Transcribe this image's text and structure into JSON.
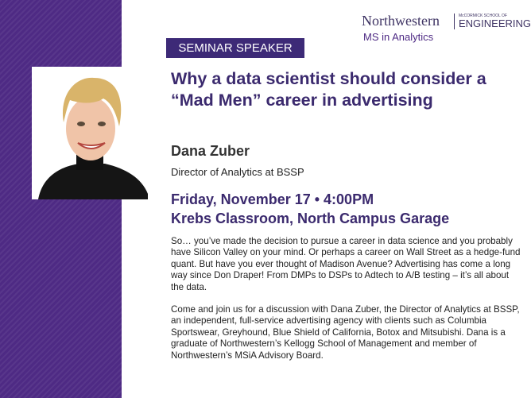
{
  "logo": {
    "university": "Northwestern",
    "school_small": "McCORMICK SCHOOL OF",
    "school": "ENGINEERING",
    "program": "MS in Analytics"
  },
  "badge": "SEMINAR SPEAKER",
  "title": "Why a data scientist should consider a “Mad Men” career in advertising",
  "speaker": {
    "name": "Dana Zuber",
    "role": "Director of Analytics at BSSP"
  },
  "event": {
    "date_time": "Friday, November 17 • 4:00PM",
    "location": "Krebs Classroom, North Campus Garage"
  },
  "body": [
    "So…  you’ve made the decision to pursue a career in data science and you probably have Silicon Valley on your mind.  Or perhaps a career on Wall Street as a hedge-fund quant.  But have you ever thought of Madison Avenue?  Advertising has come a long way since Don Draper!  From DMPs to DSPs to Adtech to A/B testing – it’s all about the data.",
    "Come and join us for a discussion with Dana Zuber, the Director of Analytics at BSSP, an independent, full-service advertising agency with clients such as Columbia Sportswear, Greyhound, Blue Shield of California, Botox and Mitsubishi.  Dana is a graduate of Northwestern’s Kellogg School of Management and member of Northwestern’s MSiA Advisory Board."
  ],
  "colors": {
    "purple": "#4e2a84",
    "title": "#3b2a6e"
  }
}
